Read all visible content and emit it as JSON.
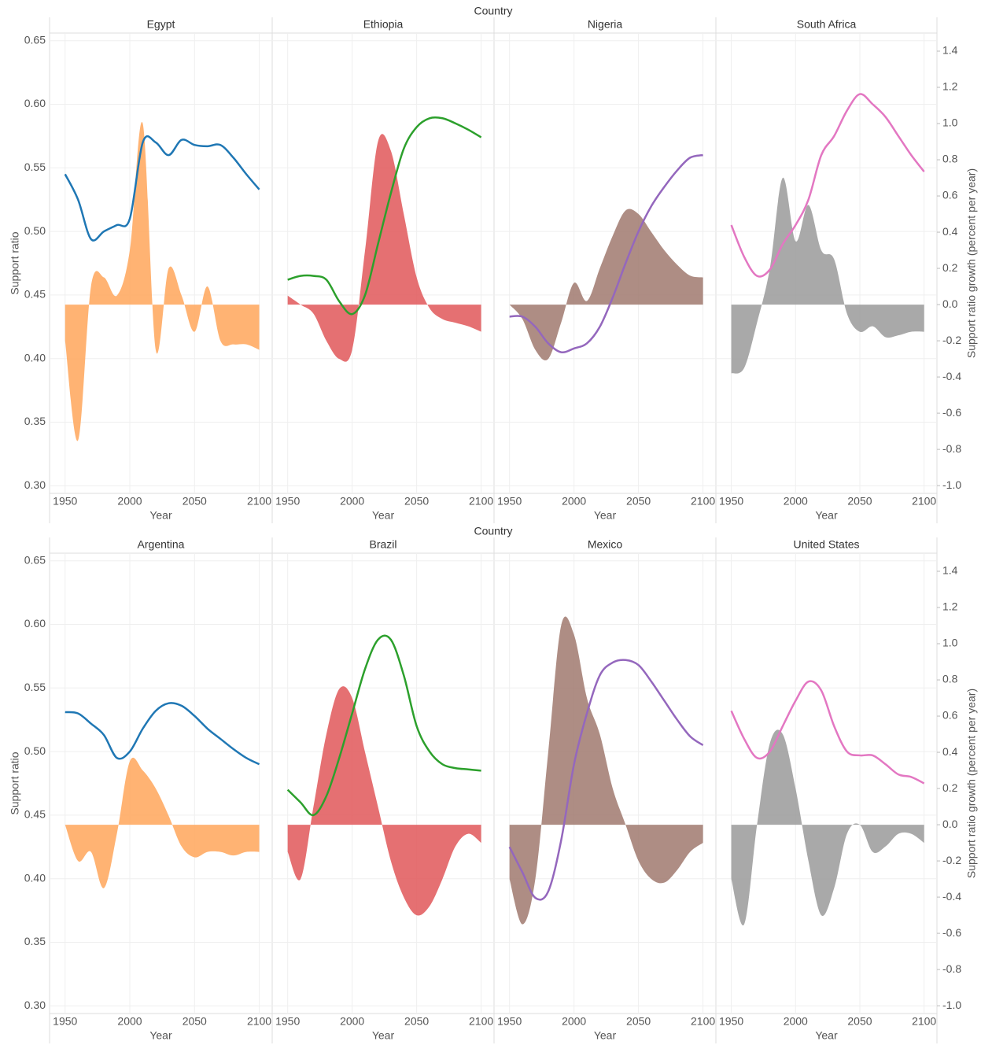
{
  "chart_data": [
    {
      "type": "combo",
      "column_header": "Country",
      "x_label": "Year",
      "y_label": "Support ratio",
      "y2_label": "Support ratio growth (percent per year)",
      "x": [
        1950,
        1960,
        1970,
        1980,
        1990,
        2000,
        2010,
        2020,
        2030,
        2040,
        2050,
        2060,
        2070,
        2080,
        2090,
        2100
      ],
      "xlim": [
        1938,
        2110
      ],
      "xticks": [
        1950,
        2000,
        2050,
        2100
      ],
      "ylim": [
        0.294,
        0.656
      ],
      "yticks": [
        {
          "value": 0.3,
          "label": "0.30"
        },
        0.35,
        {
          "value": 0.4,
          "label": "0.40"
        },
        0.45,
        {
          "value": 0.5,
          "label": "0.50"
        },
        0.55,
        {
          "value": 0.6,
          "label": "0.60"
        },
        0.65
      ],
      "y2lim": [
        -1.043,
        1.5
      ],
      "y2ticks": [
        {
          "value": -1,
          "label": "-1.0"
        },
        -0.8,
        -0.6,
        -0.4,
        -0.2,
        {
          "value": 0,
          "label": "0.0"
        },
        0.2,
        0.4,
        0.6,
        0.8,
        {
          "value": 1,
          "label": "1.0"
        },
        1.2,
        1.4
      ],
      "grid": true,
      "facets": [
        {
          "name": "Egypt",
          "line": {
            "color": "#1f77b4",
            "values": [
              0.545,
              0.525,
              0.494,
              0.5,
              0.505,
              0.51,
              0.57,
              0.57,
              0.56,
              0.572,
              0.568,
              0.567,
              0.568,
              0.558,
              0.545,
              0.533
            ]
          },
          "area": {
            "color": "#ffa65a",
            "values": [
              -0.2,
              -0.75,
              0.1,
              0.15,
              0.05,
              0.3,
              1.0,
              -0.25,
              0.2,
              0.05,
              -0.15,
              0.1,
              -0.2,
              -0.22,
              -0.22,
              -0.25
            ]
          }
        },
        {
          "name": "Ethiopia",
          "line": {
            "color": "#2ca02c",
            "values": [
              0.462,
              0.465,
              0.465,
              0.462,
              0.445,
              0.435,
              0.45,
              0.49,
              0.53,
              0.565,
              0.582,
              0.589,
              0.589,
              0.585,
              0.58,
              0.574
            ]
          },
          "area": {
            "color": "#e15759",
            "values": [
              0.05,
              0.0,
              -0.05,
              -0.2,
              -0.3,
              -0.25,
              0.3,
              0.9,
              0.85,
              0.5,
              0.15,
              -0.02,
              -0.08,
              -0.1,
              -0.12,
              -0.15
            ]
          }
        },
        {
          "name": "Nigeria",
          "line": {
            "color": "#9467bd",
            "values": [
              0.433,
              0.433,
              0.425,
              0.412,
              0.405,
              0.408,
              0.412,
              0.425,
              0.448,
              0.475,
              0.5,
              0.52,
              0.535,
              0.548,
              0.558,
              0.56
            ]
          },
          "area": {
            "color": "#a0796f",
            "values": [
              0.0,
              -0.08,
              -0.25,
              -0.3,
              -0.1,
              0.12,
              0.02,
              0.2,
              0.38,
              0.52,
              0.5,
              0.4,
              0.3,
              0.22,
              0.16,
              0.15
            ]
          }
        },
        {
          "name": "South Africa",
          "line": {
            "color": "#e377c2",
            "values": [
              0.505,
              0.48,
              0.465,
              0.47,
              0.49,
              0.505,
              0.525,
              0.56,
              0.575,
              0.595,
              0.608,
              0.6,
              0.59,
              0.575,
              0.56,
              0.547
            ]
          },
          "area": {
            "color": "#9a9a9a",
            "values": [
              -0.38,
              -0.35,
              -0.1,
              0.2,
              0.7,
              0.35,
              0.55,
              0.3,
              0.25,
              -0.05,
              -0.15,
              -0.12,
              -0.18,
              -0.17,
              -0.15,
              -0.15
            ]
          }
        }
      ]
    },
    {
      "type": "combo",
      "column_header": "Country",
      "x_label": "Year",
      "y_label": "Support ratio",
      "y2_label": "Support ratio growth (percent per year)",
      "x": [
        1950,
        1960,
        1970,
        1980,
        1990,
        2000,
        2010,
        2020,
        2030,
        2040,
        2050,
        2060,
        2070,
        2080,
        2090,
        2100
      ],
      "xlim": [
        1938,
        2110
      ],
      "xticks": [
        1950,
        2000,
        2050,
        2100
      ],
      "ylim": [
        0.294,
        0.656
      ],
      "yticks": [
        {
          "value": 0.3,
          "label": "0.30"
        },
        0.35,
        {
          "value": 0.4,
          "label": "0.40"
        },
        0.45,
        {
          "value": 0.5,
          "label": "0.50"
        },
        0.55,
        {
          "value": 0.6,
          "label": "0.60"
        },
        0.65
      ],
      "y2lim": [
        -1.043,
        1.5
      ],
      "y2ticks": [
        {
          "value": -1,
          "label": "-1.0"
        },
        -0.8,
        -0.6,
        -0.4,
        -0.2,
        {
          "value": 0,
          "label": "0.0"
        },
        0.2,
        0.4,
        0.6,
        0.8,
        {
          "value": 1,
          "label": "1.0"
        },
        1.2,
        1.4
      ],
      "grid": true,
      "facets": [
        {
          "name": "Argentina",
          "line": {
            "color": "#1f77b4",
            "values": [
              0.531,
              0.53,
              0.522,
              0.513,
              0.495,
              0.5,
              0.518,
              0.532,
              0.538,
              0.536,
              0.528,
              0.518,
              0.51,
              0.502,
              0.495,
              0.49
            ]
          },
          "area": {
            "color": "#ffa65a",
            "values": [
              0.0,
              -0.2,
              -0.15,
              -0.35,
              -0.05,
              0.35,
              0.3,
              0.2,
              0.05,
              -0.12,
              -0.18,
              -0.15,
              -0.15,
              -0.17,
              -0.15,
              -0.15
            ]
          }
        },
        {
          "name": "Brazil",
          "line": {
            "color": "#2ca02c",
            "values": [
              0.47,
              0.46,
              0.45,
              0.465,
              0.495,
              0.53,
              0.565,
              0.588,
              0.588,
              0.56,
              0.52,
              0.5,
              0.49,
              0.487,
              0.486,
              0.485
            ]
          },
          "area": {
            "color": "#e15759",
            "values": [
              -0.15,
              -0.3,
              0.1,
              0.5,
              0.75,
              0.7,
              0.4,
              0.1,
              -0.2,
              -0.4,
              -0.5,
              -0.45,
              -0.3,
              -0.12,
              -0.05,
              -0.1
            ]
          }
        },
        {
          "name": "Mexico",
          "line": {
            "color": "#9467bd",
            "values": [
              0.425,
              0.405,
              0.385,
              0.39,
              0.43,
              0.49,
              0.53,
              0.56,
              0.57,
              0.572,
              0.568,
              0.555,
              0.54,
              0.525,
              0.512,
              0.505
            ]
          },
          "area": {
            "color": "#a0796f",
            "values": [
              -0.3,
              -0.55,
              -0.3,
              0.4,
              1.1,
              1.05,
              0.7,
              0.5,
              0.2,
              0.0,
              -0.2,
              -0.3,
              -0.32,
              -0.25,
              -0.15,
              -0.1
            ]
          }
        },
        {
          "name": "United States",
          "line": {
            "color": "#e377c2",
            "values": [
              0.532,
              0.51,
              0.495,
              0.5,
              0.52,
              0.54,
              0.555,
              0.548,
              0.52,
              0.5,
              0.497,
              0.497,
              0.49,
              0.482,
              0.48,
              0.475
            ]
          },
          "area": {
            "color": "#9a9a9a",
            "values": [
              -0.3,
              -0.55,
              0.0,
              0.45,
              0.5,
              0.2,
              -0.2,
              -0.5,
              -0.35,
              -0.05,
              0.0,
              -0.15,
              -0.12,
              -0.05,
              -0.05,
              -0.1
            ]
          }
        }
      ]
    }
  ]
}
